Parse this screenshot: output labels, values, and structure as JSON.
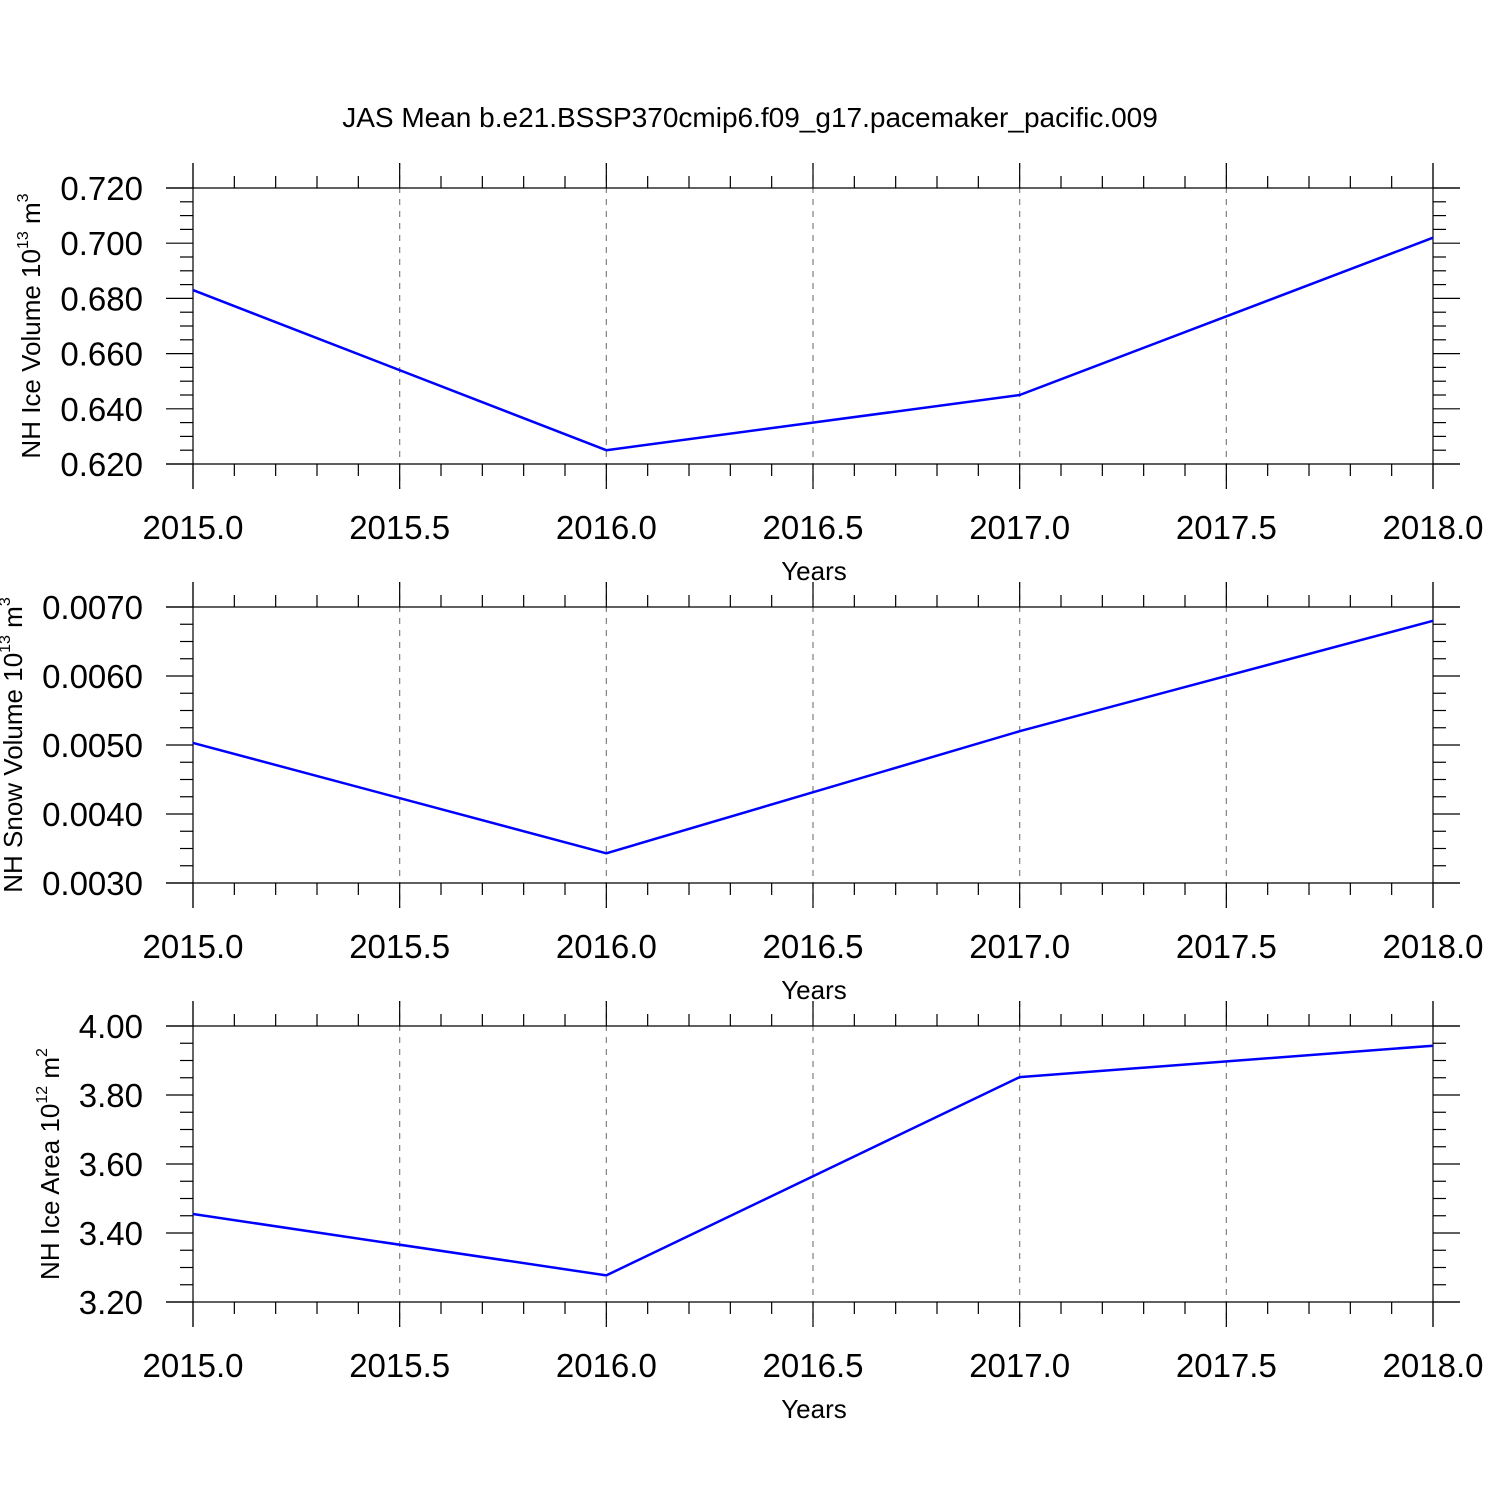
{
  "title": "JAS Mean b.e21.BSSP370cmip6.f09_g17.pacemaker_pacific.009",
  "colors": {
    "series": "#0000ff",
    "axis": "#000000",
    "grid": "#808080"
  },
  "chart_data": [
    {
      "type": "line",
      "xlabel": "Years",
      "ylabel": {
        "text": "NH Ice Volume 10",
        "sup": "13",
        "unit": " m",
        "unit_sup": "3"
      },
      "xlim": [
        2015.0,
        2018.0
      ],
      "ylim": [
        0.62,
        0.72
      ],
      "xticks": [
        "2015.0",
        "2015.5",
        "2016.0",
        "2016.5",
        "2017.0",
        "2017.5",
        "2018.0"
      ],
      "yticks": [
        "0.620",
        "0.640",
        "0.660",
        "0.680",
        "0.700",
        "0.720"
      ],
      "x": [
        2015.0,
        2016.0,
        2017.0,
        2018.0
      ],
      "y": [
        0.683,
        0.625,
        0.645,
        0.702
      ],
      "grid": "vertical dashed at major x ticks"
    },
    {
      "type": "line",
      "xlabel": "Years",
      "ylabel": {
        "text": "NH Snow Volume 10",
        "sup": "13",
        "unit": " m",
        "unit_sup": "3"
      },
      "xlim": [
        2015.0,
        2018.0
      ],
      "ylim": [
        0.003,
        0.007
      ],
      "xticks": [
        "2015.0",
        "2015.5",
        "2016.0",
        "2016.5",
        "2017.0",
        "2017.5",
        "2018.0"
      ],
      "yticks": [
        "0.0030",
        "0.0040",
        "0.0050",
        "0.0060",
        "0.0070"
      ],
      "x": [
        2015.0,
        2016.0,
        2017.0,
        2018.0
      ],
      "y": [
        0.00503,
        0.00343,
        0.0052,
        0.0068
      ],
      "grid": "vertical dashed at major x ticks"
    },
    {
      "type": "line",
      "xlabel": "Years",
      "ylabel": {
        "text": "NH Ice Area 10",
        "sup": "12",
        "unit": " m",
        "unit_sup": "2"
      },
      "xlim": [
        2015.0,
        2018.0
      ],
      "ylim": [
        3.2,
        4.0
      ],
      "xticks": [
        "2015.0",
        "2015.5",
        "2016.0",
        "2016.5",
        "2017.0",
        "2017.5",
        "2018.0"
      ],
      "yticks": [
        "3.20",
        "3.40",
        "3.60",
        "3.80",
        "4.00"
      ],
      "x": [
        2015.0,
        2016.0,
        2017.0,
        2018.0
      ],
      "y": [
        3.455,
        3.277,
        3.852,
        3.943
      ],
      "grid": "vertical dashed at major x ticks"
    }
  ]
}
